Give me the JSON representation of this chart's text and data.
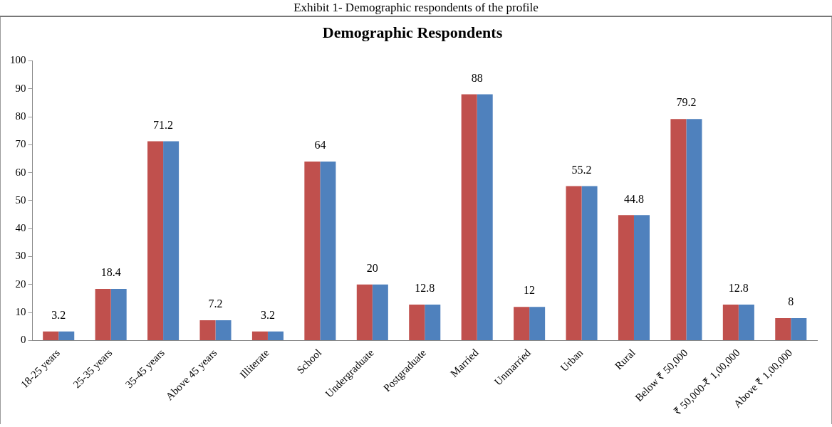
{
  "chart_data": {
    "type": "bar",
    "title": "Demographic Respondents",
    "annotations": [
      "Exhibit 1- Demographic respondents of the profile"
    ],
    "categories": [
      "18-25 years",
      "25-35 years",
      "35-45 years",
      "Above 45 years",
      "Illiterate",
      "School",
      "Undergraduate",
      "Postgraduate",
      "Married",
      "Unmarried",
      "Urban",
      "Rural",
      "Below ₹ 50,000",
      "₹ 50,000-₹ 1,00,000",
      "Above ₹ 1,00,000"
    ],
    "series": [
      {
        "color": "#c0504d",
        "values": [
          3.2,
          18.4,
          71.2,
          7.2,
          3.2,
          64,
          20,
          12.8,
          88,
          12,
          55.2,
          44.8,
          79.2,
          12.8,
          8
        ],
        "value_labels": [
          "3.2",
          "18.4",
          "71.2",
          "7.2",
          "3.2",
          "64",
          "20",
          "12.8",
          "88",
          "12",
          "55.2",
          "44.8",
          "79.2",
          "12.8",
          "8"
        ]
      },
      {
        "color": "#4f81bd",
        "values": [
          3.2,
          18.4,
          71.2,
          7.2,
          3.2,
          64,
          20,
          12.8,
          88,
          12,
          55.2,
          44.8,
          79.2,
          12.8,
          8
        ]
      }
    ],
    "ylim": [
      0,
      100
    ],
    "yticks": [
      0,
      10,
      20,
      30,
      40,
      50,
      60,
      70,
      80,
      90,
      100
    ],
    "grid": false,
    "legend": false
  }
}
